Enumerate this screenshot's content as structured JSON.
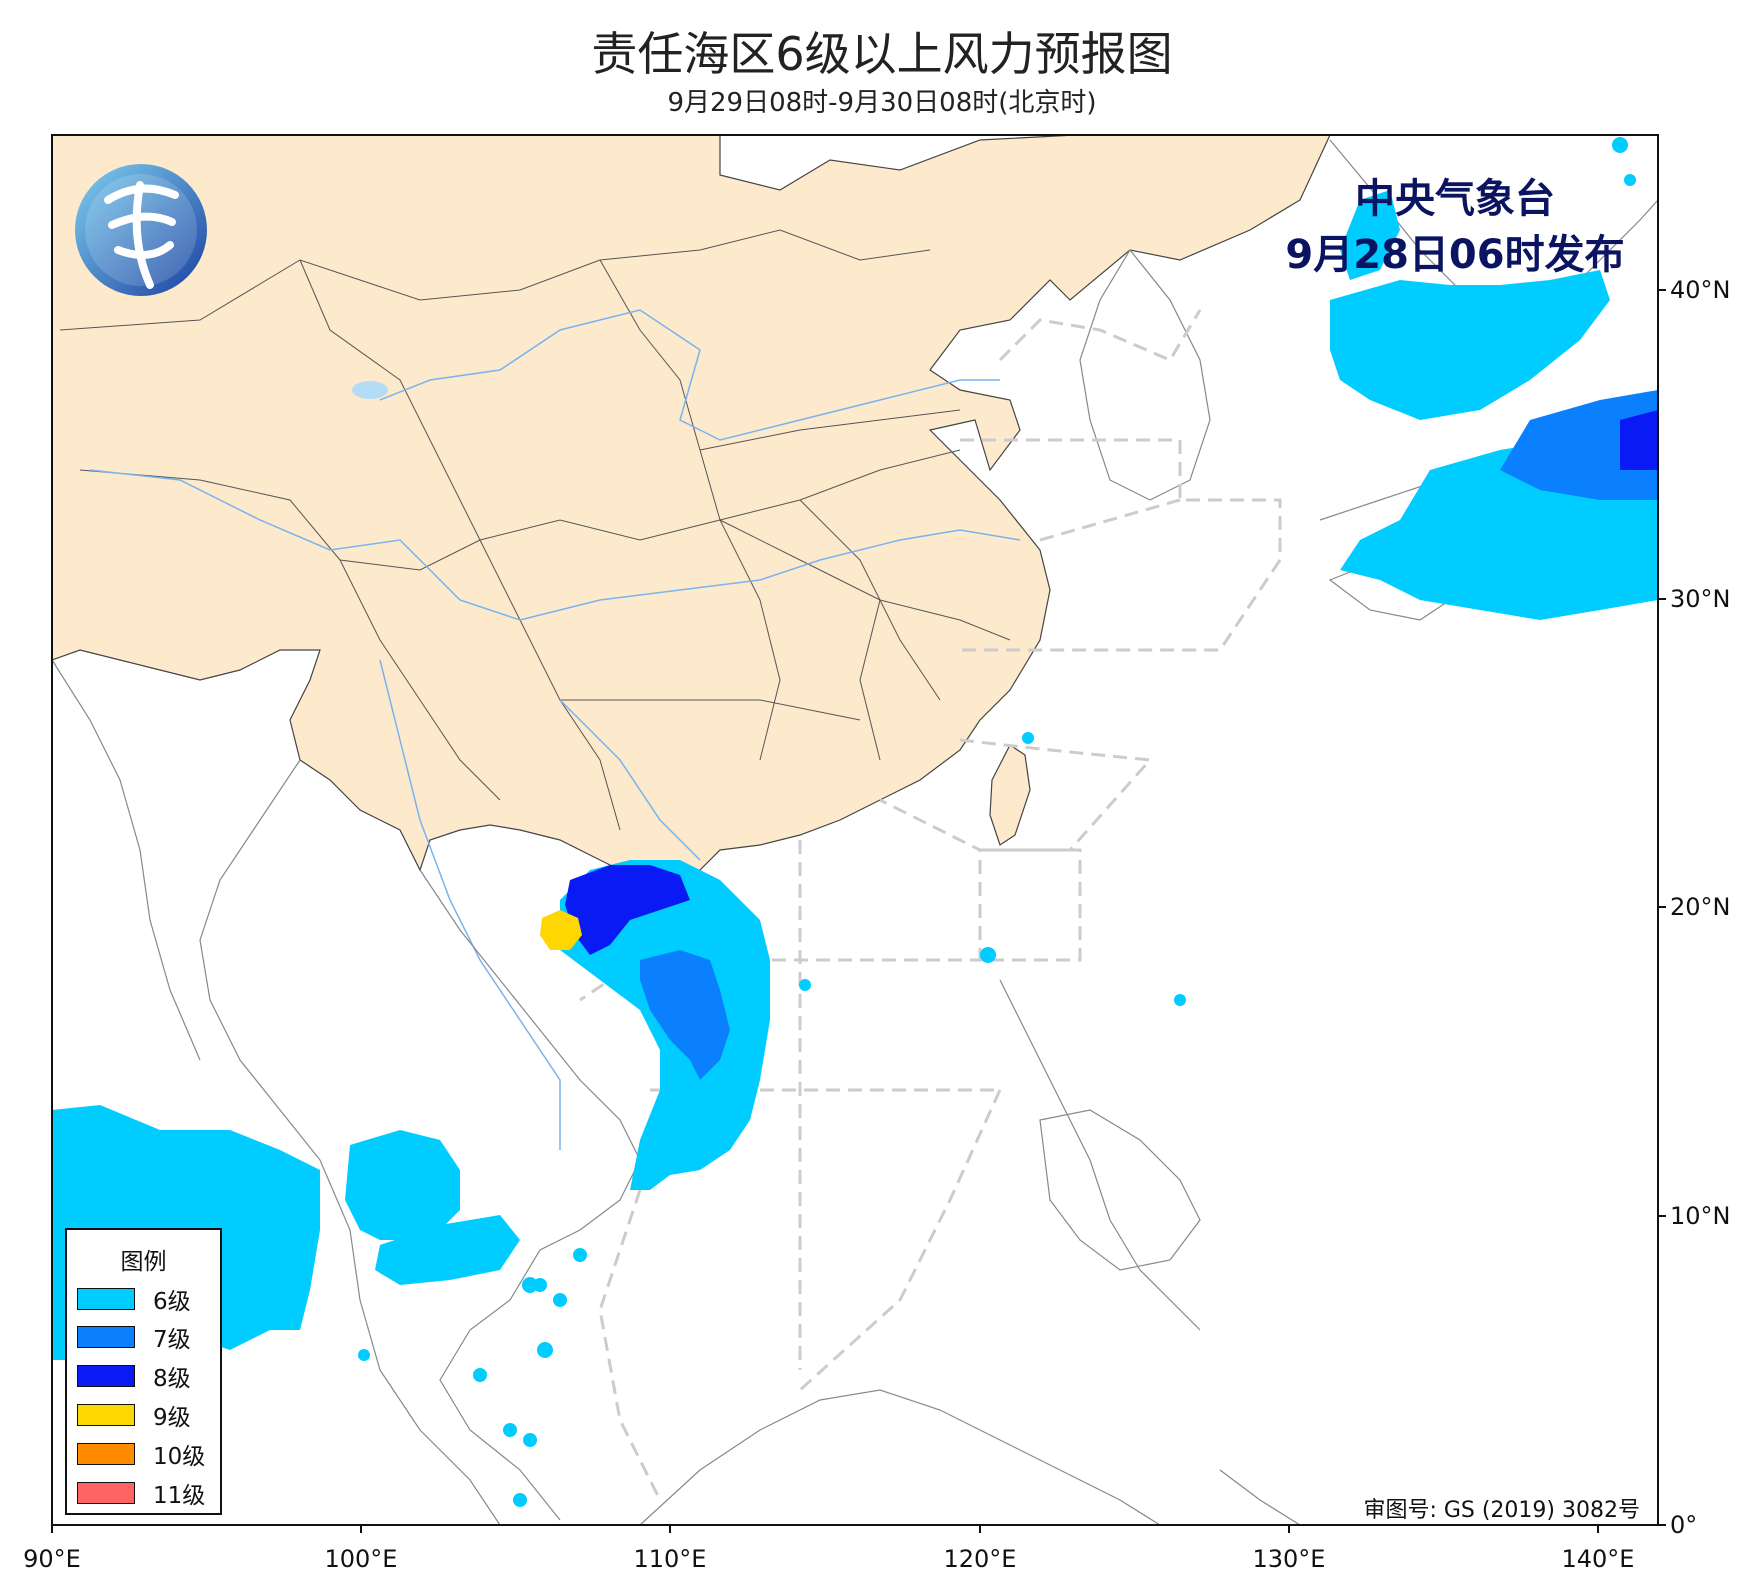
{
  "title": "责任海区6级以上风力预报图",
  "subtitle": "9月29日08时-9月30日08时(北京时)",
  "issuer": {
    "line1": "中央气象台",
    "line2": "9月28日06时发布"
  },
  "approval_number": "审图号: GS (2019) 3082号",
  "logo_icon": "cma-logo-icon",
  "axes": {
    "lon_labels": [
      "90°E",
      "100°E",
      "110°E",
      "120°E",
      "130°E",
      "140°E"
    ],
    "lat_labels": [
      "0°",
      "10°N",
      "20°N",
      "30°N",
      "40°N"
    ]
  },
  "legend": {
    "title": "图例",
    "items": [
      {
        "label": "6级",
        "color": "#00ccff"
      },
      {
        "label": "7级",
        "color": "#0a80ff"
      },
      {
        "label": "8级",
        "color": "#0a1af5"
      },
      {
        "label": "9级",
        "color": "#ffd700"
      },
      {
        "label": "10级",
        "color": "#ff8c00"
      },
      {
        "label": "11级",
        "color": "#ff6464"
      }
    ]
  },
  "colors": {
    "china_land": "#fde9cc",
    "ocean": "#ffffff",
    "river": "#78b4f0",
    "boundary": "#555555",
    "zone_dash": "#cccccc",
    "issuer_text": "#0b1460"
  }
}
